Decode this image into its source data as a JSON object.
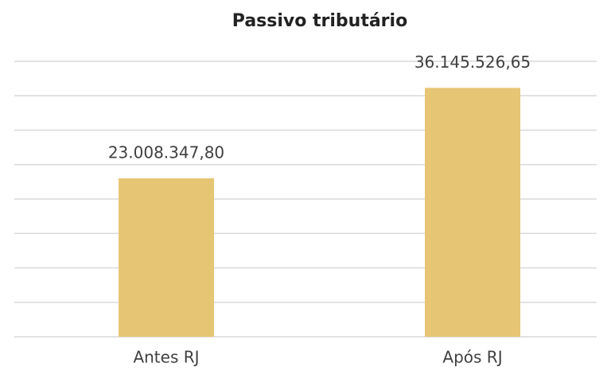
{
  "chart_data": {
    "type": "bar",
    "title": "Passivo tributário",
    "categories": [
      "Antes RJ",
      "Após RJ"
    ],
    "values": [
      23008347.8,
      36145526.65
    ],
    "value_labels": [
      "23.008.347,80",
      "36.145.526,65"
    ],
    "color": "#e6c574",
    "ylim": [
      0,
      40000000
    ],
    "yticks": [
      0,
      5000000,
      10000000,
      15000000,
      20000000,
      25000000,
      30000000,
      35000000,
      40000000
    ],
    "grid": true
  }
}
